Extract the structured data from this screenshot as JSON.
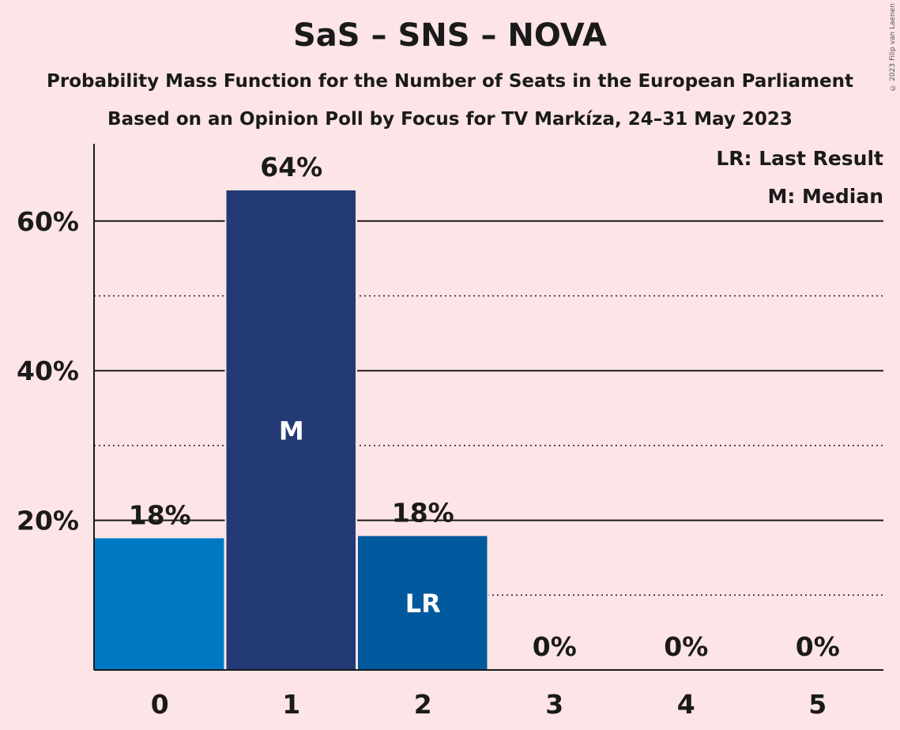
{
  "title": "SaS – SNS – NOVA",
  "subtitle1": "Probability Mass Function for the Number of Seats in the European Parliament",
  "subtitle2": "Based on an Opinion Poll by Focus for TV Markíza, 24–31 May 2023",
  "copyright": "© 2023 Filip van Laenen",
  "legend": {
    "last_result": "LR: Last Result",
    "median": "M: Median"
  },
  "colors": {
    "background": "#fde4e6",
    "bar_default": "#0079c5",
    "bar_median": "#243a76",
    "bar_last_result": "#00599c"
  },
  "chart_data": {
    "type": "bar",
    "categories": [
      "0",
      "1",
      "2",
      "3",
      "4",
      "5"
    ],
    "values": [
      17.6,
      64.1,
      17.9,
      0,
      0,
      0
    ],
    "value_labels": [
      "18%",
      "64%",
      "18%",
      "0%",
      "0%",
      "0%"
    ],
    "bar_marks": [
      "",
      "M",
      "LR",
      "",
      "",
      ""
    ],
    "ylim": [
      0,
      70
    ],
    "yticks": [
      20,
      40,
      60
    ],
    "ytick_labels": [
      "20%",
      "40%",
      "60%"
    ],
    "dotted_gridlines": [
      10,
      30,
      50
    ],
    "xlabel": "",
    "ylabel": "",
    "legend_position": "top-right"
  }
}
